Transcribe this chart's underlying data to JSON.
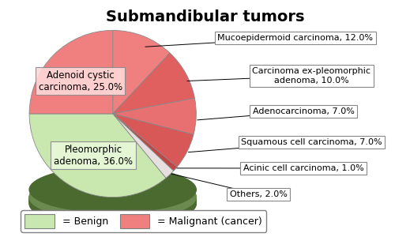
{
  "title": "Submandibular tumors",
  "slices_ordered": [
    {
      "label": "Mucoepidermoid carcinoma, 12.0%",
      "value": 12.0,
      "color": "#f08080"
    },
    {
      "label": "Carcinoma ex-pleomorphic\nadenoma, 10.0%",
      "value": 10.0,
      "color": "#e06060"
    },
    {
      "label": "Adenocarcinoma, 7.0%",
      "value": 7.0,
      "color": "#e87070"
    },
    {
      "label": "Squamous cell carcinoma, 7.0%",
      "value": 7.0,
      "color": "#d85858"
    },
    {
      "label": "Acinic cell carcinoma, 1.0%",
      "value": 1.0,
      "color": "#c04545"
    },
    {
      "label": "Others, 2.0%",
      "value": 2.0,
      "color": "#e8e0e0"
    },
    {
      "label": "Pleomorphic\nadenoma, 36.0%",
      "value": 36.0,
      "color": "#c8e8b0"
    },
    {
      "label": "Adenoid cystic\ncarcinoma, 25.0%",
      "value": 25.0,
      "color": "#f08080"
    }
  ],
  "shadow_color": "#4a6a30",
  "shadow_color2": "#6a8a50",
  "legend_benign_color": "#c8e8b0",
  "legend_malignant_color": "#f08080",
  "background_color": "#ffffff",
  "title_fontsize": 14,
  "label_fontsize": 8,
  "startangle": 90
}
